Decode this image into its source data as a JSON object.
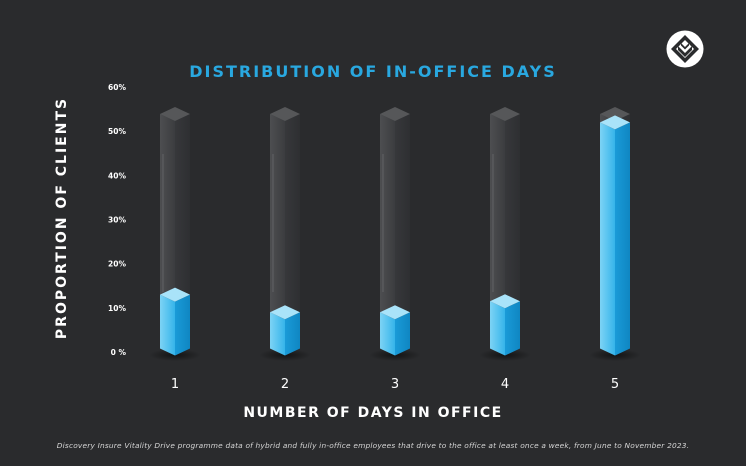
{
  "chart_data": {
    "type": "bar",
    "title": "DISTRIBUTION OF IN-OFFICE DAYS",
    "xlabel": "NUMBER OF DAYS IN OFFICE",
    "ylabel": "PROPORTION OF CLIENTS",
    "categories": [
      "1",
      "2",
      "3",
      "4",
      "5"
    ],
    "values": [
      13,
      9,
      9,
      11.5,
      52
    ],
    "ylim": [
      0,
      60
    ],
    "yticks": [
      "0 %",
      "10%",
      "20%",
      "30%",
      "40%",
      "50%",
      "60%"
    ],
    "grid": false,
    "colors": {
      "fill": "#29a8e0",
      "glass": "#5a5b5e",
      "background": "#2a2b2d",
      "title": "#29a8e0"
    }
  },
  "footnote": "Discovery Insure Vitality Drive programme data of hybrid and fully in-office employees that drive to the office at least once a week, from June to November 2023.",
  "logo": {
    "icon": "discovery-diamond-logo"
  }
}
